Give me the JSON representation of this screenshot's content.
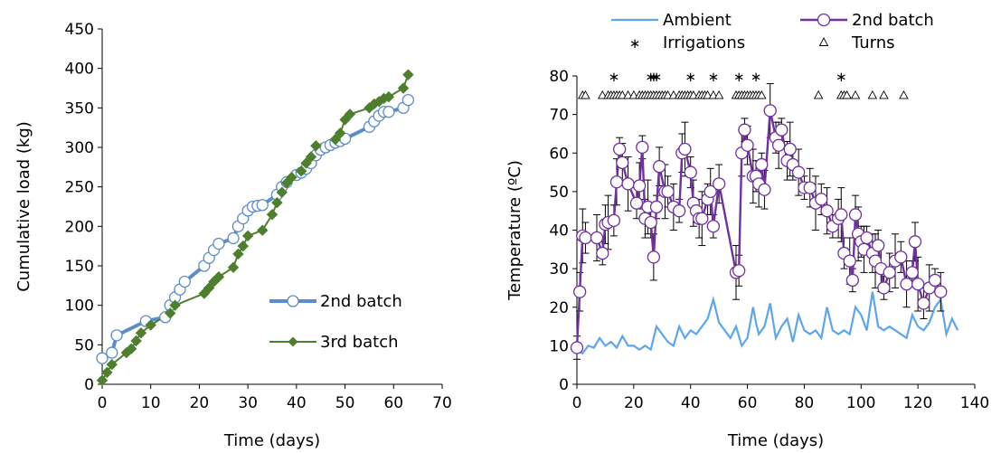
{
  "colors": {
    "second": "#5b8dc8",
    "third": "#4e7f2e",
    "ambient": "#5ea5ef",
    "batch2": "#7030a0"
  },
  "chart_data": [
    {
      "type": "line",
      "xlabel": "Time (days)",
      "ylabel": "Cumulative load (kg)",
      "xlim": [
        0,
        70
      ],
      "ylim": [
        0,
        450
      ],
      "xticks": [
        0,
        10,
        20,
        30,
        40,
        50,
        60,
        70
      ],
      "yticks": [
        0,
        50,
        100,
        150,
        200,
        250,
        300,
        350,
        400,
        450
      ],
      "legend_position": "bottom-right",
      "series": [
        {
          "name": "2nd batch",
          "marker": "circle",
          "x": [
            0,
            2,
            3,
            9,
            13,
            14,
            15,
            16,
            17,
            21,
            22,
            23,
            24,
            27,
            28,
            29,
            30,
            31,
            32,
            33,
            36,
            37,
            38,
            40,
            41,
            42,
            43,
            44,
            45,
            46,
            47,
            48,
            49,
            50,
            55,
            56,
            57,
            58,
            59,
            62,
            63
          ],
          "y": [
            33,
            40,
            62,
            80,
            85,
            100,
            110,
            120,
            130,
            150,
            160,
            170,
            178,
            185,
            200,
            210,
            220,
            225,
            226,
            227,
            240,
            250,
            256,
            265,
            268,
            273,
            280,
            290,
            297,
            300,
            303,
            306,
            308,
            311,
            326,
            333,
            340,
            345,
            345,
            350,
            360
          ]
        },
        {
          "name": "3rd batch",
          "marker": "diamond",
          "x": [
            0,
            1,
            2,
            5,
            6,
            7,
            8,
            10,
            14,
            15,
            21,
            22,
            23,
            24,
            27,
            28,
            29,
            30,
            33,
            35,
            36,
            37,
            38,
            39,
            41,
            42,
            43,
            44,
            48,
            49,
            50,
            51,
            55,
            56,
            57,
            58,
            59,
            62,
            63
          ],
          "y": [
            5,
            15,
            25,
            40,
            45,
            55,
            65,
            75,
            90,
            100,
            115,
            122,
            130,
            136,
            148,
            165,
            175,
            188,
            195,
            215,
            230,
            243,
            255,
            262,
            270,
            280,
            288,
            302,
            310,
            318,
            335,
            342,
            350,
            355,
            358,
            362,
            364,
            375,
            392
          ]
        }
      ]
    },
    {
      "type": "line",
      "xlabel": "Time (days)",
      "ylabel": "Temperature (ºC)",
      "xlim": [
        0,
        140
      ],
      "ylim": [
        0,
        80
      ],
      "xticks": [
        0,
        20,
        40,
        60,
        80,
        100,
        120,
        140
      ],
      "yticks": [
        0,
        10,
        20,
        30,
        40,
        50,
        60,
        70,
        80
      ],
      "legend_position": "top",
      "legend": [
        {
          "name": "Ambient",
          "kind": "line"
        },
        {
          "name": "2nd batch",
          "kind": "line-circle"
        },
        {
          "name": "Irrigations",
          "kind": "asterisk"
        },
        {
          "name": "Turns",
          "kind": "triangle"
        }
      ],
      "series": [
        {
          "name": "Ambient",
          "x": [
            0,
            2,
            4,
            6,
            8,
            10,
            12,
            14,
            16,
            18,
            20,
            22,
            24,
            26,
            28,
            30,
            32,
            34,
            36,
            38,
            40,
            42,
            44,
            46,
            48,
            50,
            52,
            54,
            56,
            58,
            60,
            62,
            63,
            64,
            66,
            68,
            70,
            72,
            74,
            76,
            78,
            80,
            82,
            84,
            86,
            88,
            90,
            92,
            94,
            96,
            98,
            100,
            102,
            104,
            106,
            108,
            110,
            112,
            114,
            116,
            118,
            120,
            122,
            124,
            126,
            128,
            130,
            132,
            134
          ],
          "y": [
            9,
            8,
            10,
            9.5,
            12,
            10,
            11,
            9.5,
            12.5,
            10,
            10,
            9,
            10,
            9,
            15,
            13,
            11,
            10,
            15,
            12,
            14,
            13,
            15,
            17,
            22,
            16,
            14,
            12,
            15,
            10,
            12,
            20,
            16,
            13,
            15,
            21,
            12,
            15,
            17,
            11,
            18,
            14,
            13,
            14,
            12,
            20,
            14,
            13,
            14,
            13,
            20,
            18,
            14,
            24,
            15,
            14,
            15,
            14,
            13,
            12,
            18,
            15,
            14,
            16,
            20,
            22,
            13,
            17,
            14
          ]
        },
        {
          "name": "2nd batch",
          "x": [
            0,
            1,
            2,
            3,
            7,
            9,
            10,
            11,
            13,
            14,
            15,
            16,
            18,
            21,
            22,
            23,
            24,
            25,
            26,
            27,
            28,
            29,
            31,
            32,
            34,
            36,
            37,
            38,
            40,
            41,
            42,
            43,
            44,
            46,
            47,
            48,
            50,
            56,
            57,
            58,
            59,
            60,
            62,
            63,
            64,
            65,
            66,
            68,
            70,
            71,
            72,
            74,
            75,
            76,
            78,
            80,
            82,
            84,
            86,
            88,
            90,
            92,
            93,
            94,
            96,
            97,
            98,
            99,
            100,
            101,
            102,
            104,
            105,
            106,
            107,
            108,
            110,
            112,
            114,
            116,
            118,
            119,
            120,
            122,
            124,
            126,
            128
          ],
          "y": [
            9.5,
            24,
            38.5,
            38,
            38,
            34,
            41.5,
            42,
            42.5,
            52.5,
            61,
            57.5,
            52,
            47,
            51.5,
            61.5,
            43,
            46,
            42,
            33,
            46,
            56.5,
            50,
            50,
            46,
            45,
            60,
            61,
            55,
            47,
            45,
            43,
            43,
            48,
            50,
            41,
            52,
            29,
            29.5,
            60,
            66,
            62,
            54,
            54,
            52,
            57,
            50.5,
            71,
            64,
            62,
            66,
            58,
            61,
            57,
            55,
            51,
            51,
            47,
            48,
            45,
            41,
            43,
            44,
            34,
            32,
            27,
            44,
            39,
            37,
            35,
            38,
            34,
            32,
            36,
            30,
            25,
            29,
            32,
            33,
            26,
            29,
            37,
            26,
            21,
            25,
            27,
            24
          ]
        }
      ],
      "irrigations_x": [
        13,
        26,
        27,
        28,
        40,
        48,
        57,
        63,
        93
      ],
      "irrigations_y": 80,
      "turns_x": [
        2,
        3,
        9,
        11,
        12,
        13,
        14,
        15,
        16,
        18,
        20,
        22,
        23,
        24,
        25,
        26,
        27,
        28,
        29,
        30,
        31,
        32,
        34,
        36,
        37,
        38,
        39,
        40,
        41,
        43,
        44,
        45,
        46,
        48,
        50,
        56,
        57,
        58,
        59,
        60,
        61,
        62,
        63,
        64,
        65,
        85,
        93,
        94,
        95,
        98,
        104,
        108,
        115
      ],
      "turns_y": 75
    }
  ]
}
